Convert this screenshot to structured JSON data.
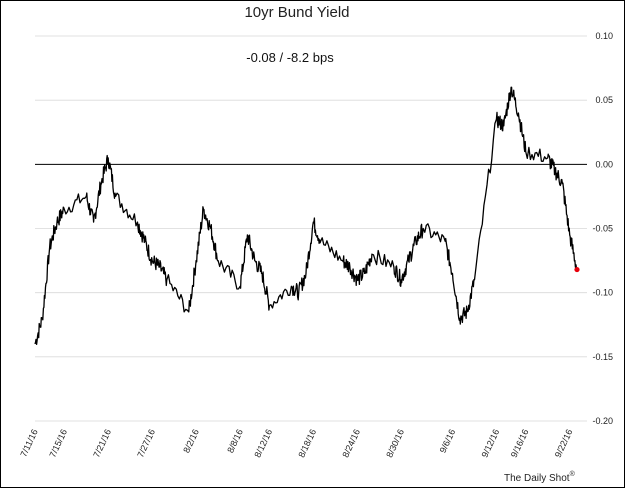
{
  "chart_data": {
    "type": "line",
    "title": "10yr Bund Yield",
    "annotation": "-0.08  /  -8.2 bps",
    "credit": "The Daily Shot",
    "credit_mark": "®",
    "ylim": [
      -0.2,
      0.1
    ],
    "yticks": [
      "0.10",
      "0.05",
      "0.00",
      "-0.05",
      "-0.10",
      "-0.15",
      "-0.20"
    ],
    "ytick_values": [
      0.1,
      0.05,
      0.0,
      -0.05,
      -0.1,
      -0.15,
      -0.2
    ],
    "xticks": [
      "7/11/16",
      "7/15/16",
      "7/21/16",
      "7/27/16",
      "8/2/16",
      "8/8/16",
      "8/12/16",
      "8/18/16",
      "8/24/16",
      "8/30/16",
      "9/6/16",
      "9/12/16",
      "9/16/16",
      "9/22/16"
    ],
    "grid": true,
    "zero_line": true,
    "line_color": "#000000",
    "last_point_color": "#e8000b",
    "series": [
      {
        "x": [
          "7/11/16",
          "7/12/16",
          "7/13/16",
          "7/14/16",
          "7/15/16",
          "7/18/16",
          "7/19/16",
          "7/20/16",
          "7/21/16",
          "7/22/16",
          "7/25/16",
          "7/26/16",
          "7/27/16",
          "7/28/16",
          "7/29/16",
          "8/1/16",
          "8/2/16",
          "8/3/16",
          "8/4/16",
          "8/5/16",
          "8/8/16",
          "8/9/16",
          "8/10/16",
          "8/11/16",
          "8/12/16",
          "8/15/16",
          "8/16/16",
          "8/17/16",
          "8/18/16",
          "8/19/16",
          "8/22/16",
          "8/23/16",
          "8/24/16",
          "8/25/16",
          "8/26/16",
          "8/29/16",
          "8/30/16",
          "8/31/16",
          "9/1/16",
          "9/2/16",
          "9/5/16",
          "9/6/16",
          "9/7/16",
          "9/8/16",
          "9/9/16",
          "9/12/16",
          "9/13/16",
          "9/14/16",
          "9/15/16",
          "9/16/16",
          "9/19/16",
          "9/20/16",
          "9/21/16",
          "9/22/16",
          "9/23/16"
        ],
        "values": [
          -0.14,
          -0.12,
          -0.065,
          -0.045,
          -0.035,
          -0.025,
          -0.045,
          -0.015,
          0.005,
          -0.025,
          -0.045,
          -0.06,
          -0.075,
          -0.08,
          -0.09,
          -0.115,
          -0.075,
          -0.035,
          -0.05,
          -0.075,
          -0.095,
          -0.055,
          -0.075,
          -0.085,
          -0.11,
          -0.095,
          -0.1,
          -0.085,
          -0.045,
          -0.06,
          -0.075,
          -0.08,
          -0.09,
          -0.085,
          -0.07,
          -0.08,
          -0.09,
          -0.075,
          -0.06,
          -0.05,
          -0.06,
          -0.085,
          -0.12,
          -0.115,
          -0.09,
          0.035,
          0.03,
          0.06,
          0.04,
          0.01,
          0.005,
          -0.005,
          -0.015,
          -0.055,
          -0.082
        ]
      }
    ]
  }
}
